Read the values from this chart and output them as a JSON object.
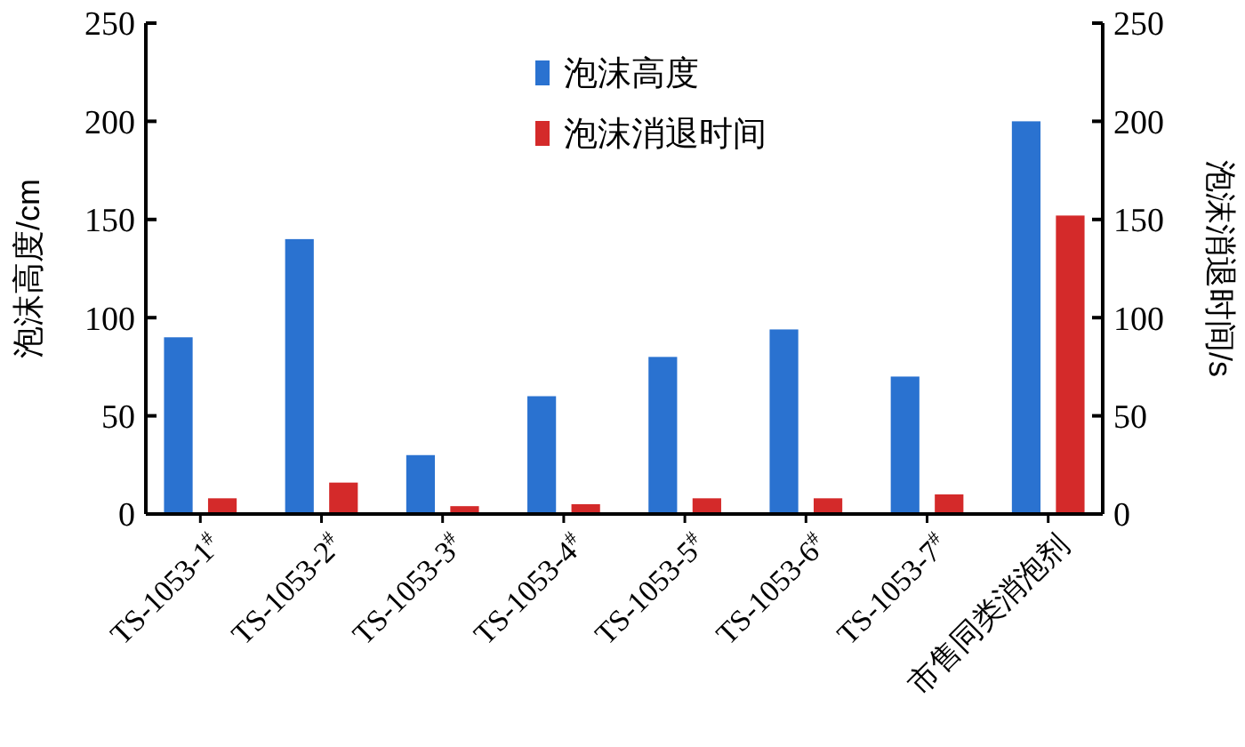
{
  "chart_data": {
    "type": "bar",
    "categories": [
      "TS-1053-1$^{#}$",
      "TS-1053-2$^{#}$",
      "TS-1053-3$^{#}$",
      "TS-1053-4$^{#}$",
      "TS-1053-5$^{#}$",
      "TS-1053-6$^{#}$",
      "TS-1053-7$^{#}$",
      "市售同类消泡剂"
    ],
    "series": [
      {
        "name": "泡沫高度",
        "color": "#2a72d0",
        "values": [
          90,
          140,
          30,
          60,
          80,
          94,
          70,
          200
        ]
      },
      {
        "name": "泡沫消退时间",
        "color": "#d42a2a",
        "axis": "y2",
        "values": [
          8,
          16,
          4,
          5,
          8,
          8,
          10,
          152
        ]
      }
    ],
    "ylabel": "泡沫高度/cm",
    "y2label": "泡沫消退时间/s",
    "ylim": [
      0,
      250
    ],
    "yticks": [
      0,
      50,
      100,
      150,
      200,
      250
    ],
    "y2lim": [
      0,
      250
    ],
    "y2ticks": [
      0,
      50,
      100,
      150,
      200,
      250
    ],
    "grid": false,
    "legend": "top"
  }
}
